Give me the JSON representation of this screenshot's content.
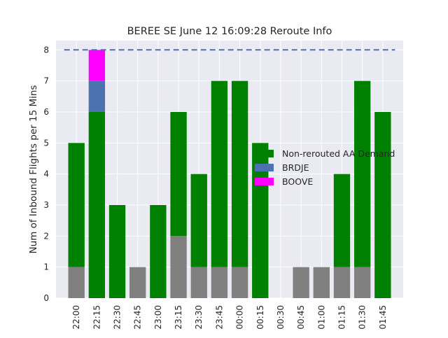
{
  "chart_data": {
    "type": "bar",
    "stacked": true,
    "title": "BEREE SE June 12 16:09:28 Reroute Info",
    "xlabel": "",
    "ylabel": "Num of Inbound Flights per 15 Mins",
    "categories": [
      "22:00",
      "22:15",
      "22:30",
      "22:45",
      "23:00",
      "23:15",
      "23:30",
      "23:45",
      "00:00",
      "00:15",
      "00:30",
      "00:45",
      "01:00",
      "01:15",
      "01:30",
      "01:45"
    ],
    "ylim": [
      0,
      8.3
    ],
    "yticks": [
      0,
      1,
      2,
      3,
      4,
      5,
      6,
      7,
      8
    ],
    "grid": true,
    "legend_position": "center-right",
    "threshold": {
      "value": 8,
      "style": "dashed",
      "color": "#4c72b0"
    },
    "series": [
      {
        "values": [
          1,
          0,
          0,
          1,
          0,
          2,
          1,
          1,
          1,
          0,
          0,
          1,
          1,
          1,
          1,
          0
        ],
        "color": "#808080"
      },
      {
        "name": "Non-rerouted AA Demand",
        "values": [
          4,
          6,
          3,
          0,
          3,
          4,
          3,
          6,
          6,
          5,
          0,
          0,
          0,
          3,
          6,
          6
        ],
        "color": "#008000"
      },
      {
        "name": "BRDJE",
        "values": [
          0,
          1,
          0,
          0,
          0,
          0,
          0,
          0,
          0,
          0,
          0,
          0,
          0,
          0,
          0,
          0
        ],
        "color": "#4c72b0"
      },
      {
        "name": "BOOVE",
        "values": [
          0,
          1,
          0,
          0,
          0,
          0,
          0,
          0,
          0,
          0,
          0,
          0,
          0,
          0,
          0,
          0
        ],
        "color": "#ff00ff"
      }
    ]
  }
}
